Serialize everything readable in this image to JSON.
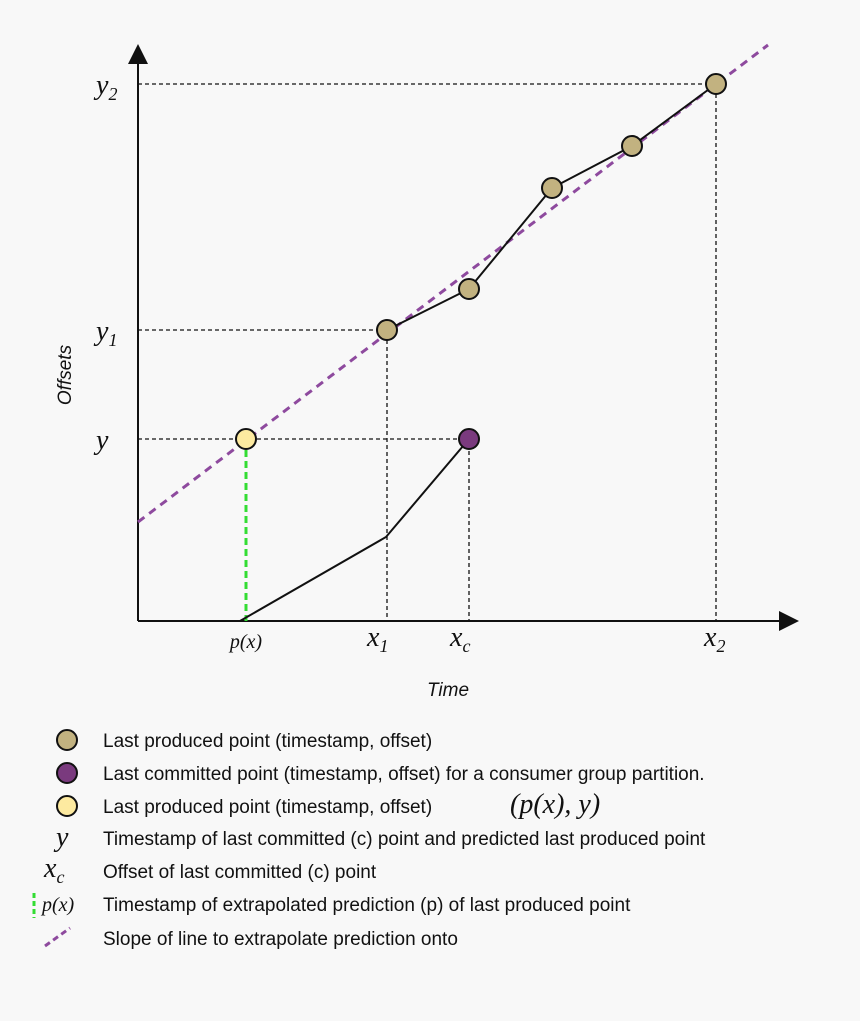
{
  "axes": {
    "y_label": "Offsets",
    "x_label": "Time"
  },
  "y_ticks": [
    {
      "base": "y",
      "sub": "2"
    },
    {
      "base": "y",
      "sub": "1"
    },
    {
      "base": "y"
    }
  ],
  "x_ticks": [
    {
      "base": "p(x)"
    },
    {
      "base": "x",
      "sub": "1"
    },
    {
      "base": "x",
      "sub": "c"
    },
    {
      "base": "x",
      "sub": "2"
    }
  ],
  "legend": [
    {
      "text": "Last produced point (timestamp, offset)"
    },
    {
      "text": "Last committed point (timestamp, offset) for a consumer group partition."
    },
    {
      "text": "Last produced point (timestamp, offset)",
      "formula": "(p(x), y)"
    },
    {
      "symbol": "y",
      "text": "Timestamp of last committed (c) point and predicted last produced point"
    },
    {
      "symbol": "x",
      "symbol_sub": "c",
      "text": "Offset of last committed (c) point"
    },
    {
      "symbol": "p(x)",
      "text": "Timestamp of extrapolated prediction (p) of last produced point"
    },
    {
      "text": "Slope of line to extrapolate prediction onto"
    }
  ]
}
